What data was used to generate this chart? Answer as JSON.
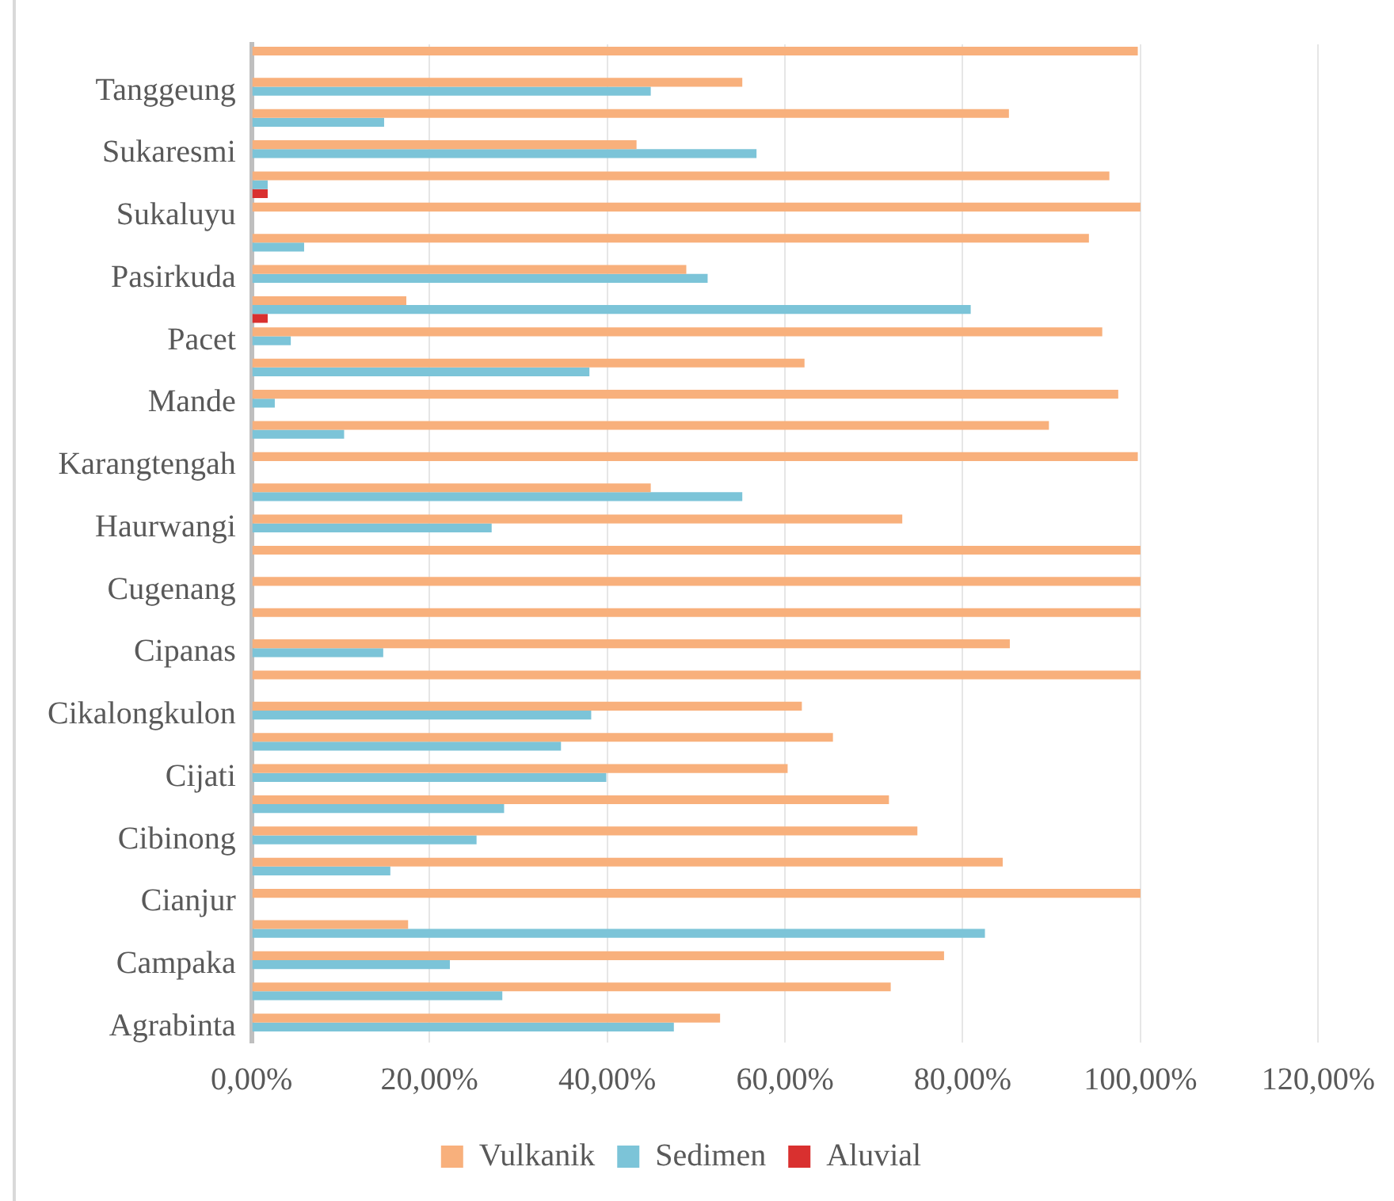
{
  "chart_data": {
    "type": "bar",
    "orientation": "horizontal",
    "categories": [
      null,
      "Tanggeung",
      null,
      "Sukaresmi",
      null,
      "Sukaluyu",
      null,
      "Pasirkuda",
      null,
      "Pacet",
      null,
      "Mande",
      null,
      "Karangtengah",
      null,
      "Haurwangi",
      null,
      "Cugenang",
      null,
      "Cipanas",
      null,
      "Cikalongkulon",
      null,
      "Cijati",
      null,
      "Cibinong",
      null,
      "Cianjur",
      null,
      "Campaka",
      null,
      "Agrabinta"
    ],
    "series": [
      {
        "name": "Vulkanik",
        "color": "#f8b07c",
        "values": [
          99.7,
          55.2,
          85.2,
          43.3,
          96.5,
          100,
          94.2,
          48.9,
          17.4,
          95.7,
          62.2,
          97.5,
          89.7,
          99.7,
          44.9,
          73.2,
          100,
          100,
          100,
          85.3,
          100,
          61.9,
          65.4,
          60.3,
          71.7,
          74.9,
          84.5,
          100,
          17.6,
          77.9,
          71.9,
          52.7
        ]
      },
      {
        "name": "Sedimen",
        "color": "#7cc4d8",
        "values": [
          0,
          44.9,
          14.9,
          56.8,
          1.8,
          0,
          5.9,
          51.3,
          80.9,
          4.4,
          38,
          2.6,
          10.4,
          0,
          55.2,
          27.0,
          0,
          0,
          0,
          14.8,
          0,
          38.2,
          34.8,
          39.9,
          28.4,
          25.3,
          15.6,
          0,
          82.5,
          22.3,
          28.2,
          47.5
        ]
      },
      {
        "name": "Aluvial",
        "color": "#d9302f",
        "values": [
          0,
          0,
          0,
          0,
          1.8,
          0,
          0,
          0,
          1.8,
          0,
          0,
          0,
          0,
          0,
          0,
          0,
          0,
          0,
          0,
          0,
          0,
          0,
          0,
          0,
          0,
          0,
          0,
          0,
          0,
          0,
          0,
          0
        ]
      }
    ],
    "xlim": [
      0,
      120
    ],
    "xticks": [
      {
        "value": 0,
        "label": "0,00%"
      },
      {
        "value": 20,
        "label": "20,00%"
      },
      {
        "value": 40,
        "label": "40,00%"
      },
      {
        "value": 60,
        "label": "60,00%"
      },
      {
        "value": 80,
        "label": "80,00%"
      },
      {
        "value": 100,
        "label": "100,00%"
      },
      {
        "value": 120,
        "label": "120,00%"
      }
    ],
    "grid": "x",
    "legend": "bottom"
  }
}
